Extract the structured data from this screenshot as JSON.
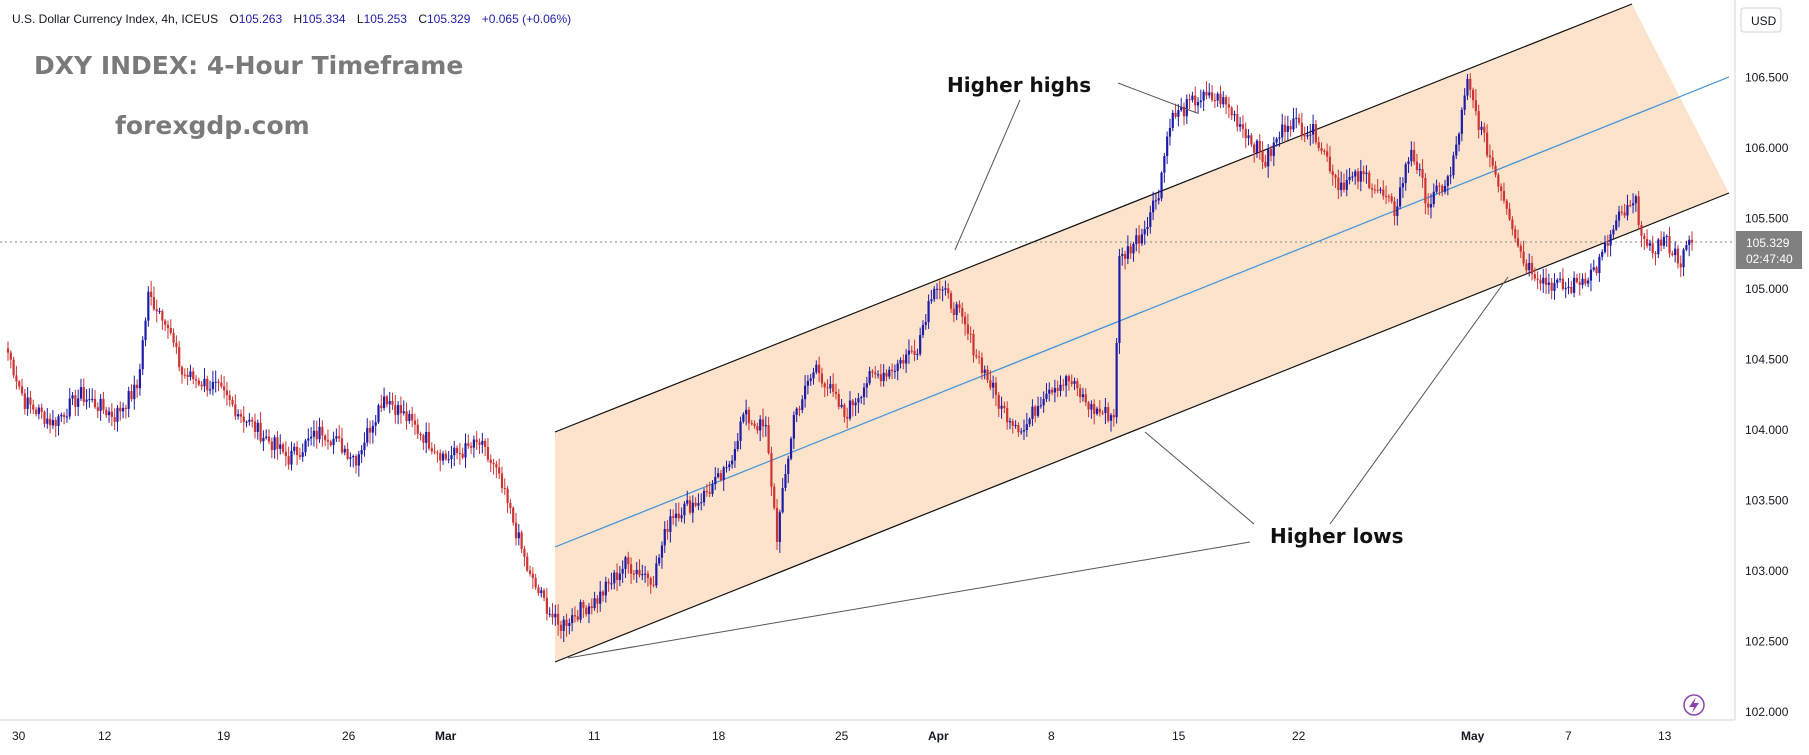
{
  "header": {
    "symbol": "U.S. Dollar Currency Index, 4h, ICEUS",
    "open_label": "O",
    "open": "105.263",
    "high_label": "H",
    "high": "105.334",
    "low_label": "L",
    "low": "105.253",
    "close_label": "C",
    "close": "105.329",
    "change": "+0.065 (+0.06%)"
  },
  "title": "DXY INDEX: 4-Hour Timeframe",
  "watermark": "forexgdp.com",
  "currency": "USD",
  "price_label": {
    "price": "105.329",
    "countdown": "02:47:40"
  },
  "annotations": {
    "higher_highs": "Higher highs",
    "higher_lows": "Higher lows"
  },
  "colors": {
    "up": "#1c1ca8",
    "down": "#cc3333",
    "channel_fill": "#fde3cc",
    "midline": "#3d8fd6",
    "price_tag": "#808080"
  },
  "chart_data": {
    "type": "candlestick",
    "timeframe": "4h",
    "y_ticks": [
      "106.500",
      "106.000",
      "105.500",
      "105.000",
      "104.500",
      "104.000",
      "103.500",
      "103.000",
      "102.500",
      "102.000"
    ],
    "ylim": [
      101.95,
      106.95
    ],
    "x_ticks": [
      "30",
      "12",
      "19",
      "26",
      "Mar",
      "11",
      "18",
      "25",
      "Apr",
      "8",
      "15",
      "22",
      "May",
      "7",
      "13"
    ],
    "current_price": 105.329,
    "price_path": [
      {
        "i": 0,
        "p": 104.55
      },
      {
        "i": 6,
        "p": 104.2
      },
      {
        "i": 16,
        "p": 104.05
      },
      {
        "i": 26,
        "p": 104.25
      },
      {
        "i": 38,
        "p": 104.1
      },
      {
        "i": 46,
        "p": 104.3
      },
      {
        "i": 50,
        "p": 104.95
      },
      {
        "i": 56,
        "p": 104.8
      },
      {
        "i": 62,
        "p": 104.4
      },
      {
        "i": 74,
        "p": 104.3
      },
      {
        "i": 86,
        "p": 104.05
      },
      {
        "i": 100,
        "p": 103.8
      },
      {
        "i": 112,
        "p": 104.0
      },
      {
        "i": 124,
        "p": 103.8
      },
      {
        "i": 134,
        "p": 104.25
      },
      {
        "i": 146,
        "p": 104.0
      },
      {
        "i": 156,
        "p": 103.8
      },
      {
        "i": 168,
        "p": 103.9
      },
      {
        "i": 174,
        "p": 103.7
      },
      {
        "i": 180,
        "p": 103.35
      },
      {
        "i": 186,
        "p": 102.95
      },
      {
        "i": 192,
        "p": 102.75
      },
      {
        "i": 196,
        "p": 102.6
      },
      {
        "i": 202,
        "p": 102.7
      },
      {
        "i": 210,
        "p": 102.8
      },
      {
        "i": 220,
        "p": 103.05
      },
      {
        "i": 230,
        "p": 102.95
      },
      {
        "i": 236,
        "p": 103.4
      },
      {
        "i": 246,
        "p": 103.5
      },
      {
        "i": 256,
        "p": 103.7
      },
      {
        "i": 262,
        "p": 104.1
      },
      {
        "i": 270,
        "p": 104.0
      },
      {
        "i": 274,
        "p": 103.25
      },
      {
        "i": 280,
        "p": 104.1
      },
      {
        "i": 288,
        "p": 104.45
      },
      {
        "i": 298,
        "p": 104.1
      },
      {
        "i": 306,
        "p": 104.35
      },
      {
        "i": 316,
        "p": 104.45
      },
      {
        "i": 324,
        "p": 104.6
      },
      {
        "i": 330,
        "p": 105.05
      },
      {
        "i": 338,
        "p": 104.85
      },
      {
        "i": 346,
        "p": 104.5
      },
      {
        "i": 354,
        "p": 104.15
      },
      {
        "i": 362,
        "p": 104.0
      },
      {
        "i": 370,
        "p": 104.3
      },
      {
        "i": 378,
        "p": 104.35
      },
      {
        "i": 386,
        "p": 104.15
      },
      {
        "i": 394,
        "p": 104.1
      },
      {
        "i": 396,
        "p": 105.2
      },
      {
        "i": 404,
        "p": 105.4
      },
      {
        "i": 410,
        "p": 105.7
      },
      {
        "i": 414,
        "p": 106.2
      },
      {
        "i": 424,
        "p": 106.35
      },
      {
        "i": 432,
        "p": 106.35
      },
      {
        "i": 440,
        "p": 106.15
      },
      {
        "i": 448,
        "p": 105.9
      },
      {
        "i": 456,
        "p": 106.2
      },
      {
        "i": 466,
        "p": 106.1
      },
      {
        "i": 474,
        "p": 105.75
      },
      {
        "i": 484,
        "p": 105.8
      },
      {
        "i": 494,
        "p": 105.55
      },
      {
        "i": 500,
        "p": 106.0
      },
      {
        "i": 506,
        "p": 105.6
      },
      {
        "i": 514,
        "p": 105.8
      },
      {
        "i": 520,
        "p": 106.45
      },
      {
        "i": 526,
        "p": 106.05
      },
      {
        "i": 534,
        "p": 105.6
      },
      {
        "i": 540,
        "p": 105.2
      },
      {
        "i": 548,
        "p": 105.05
      },
      {
        "i": 556,
        "p": 105.0
      },
      {
        "i": 566,
        "p": 105.15
      },
      {
        "i": 574,
        "p": 105.5
      },
      {
        "i": 580,
        "p": 105.6
      },
      {
        "i": 584,
        "p": 105.25
      },
      {
        "i": 590,
        "p": 105.35
      },
      {
        "i": 596,
        "p": 105.2
      },
      {
        "i": 600,
        "p": 105.35
      }
    ]
  }
}
